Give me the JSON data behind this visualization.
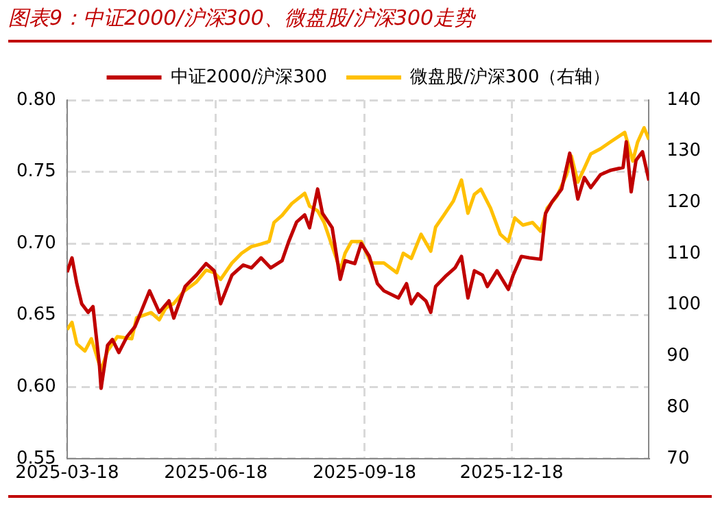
{
  "chart_data": {
    "type": "line",
    "title": "图表9：中证2000/沪深300、微盘股/沪深300走势",
    "xlim": [
      "2025-03-18",
      "2026-03-13"
    ],
    "xticks": [
      "2025-03-18",
      "2025-06-18",
      "2025-09-18",
      "2025-12-18"
    ],
    "ylim": [
      0.55,
      0.8
    ],
    "yticks": [
      {
        "value": 0.55,
        "label": "0.55"
      },
      {
        "value": 0.6,
        "label": "0.60"
      },
      {
        "value": 0.65,
        "label": "0.65"
      },
      {
        "value": 0.7,
        "label": "0.70"
      },
      {
        "value": 0.75,
        "label": "0.75"
      },
      {
        "value": 0.8,
        "label": "0.80"
      }
    ],
    "y2lim": [
      70,
      140
    ],
    "y2ticks": [
      70,
      80,
      90,
      100,
      110,
      120,
      130,
      140
    ],
    "grid": true,
    "legend": "top",
    "marker": "none",
    "line_style": "solid",
    "series": [
      {
        "name": "中证2000/沪深300",
        "color": "#c00000",
        "axis": "y",
        "x": [
          "2025-03-18",
          "2025-03-21",
          "2025-03-24",
          "2025-03-27",
          "2025-03-31",
          "2025-04-03",
          "2025-04-07",
          "2025-04-08",
          "2025-04-12",
          "2025-04-15",
          "2025-04-19",
          "2025-04-24",
          "2025-04-29",
          "2025-05-08",
          "2025-05-14",
          "2025-05-20",
          "2025-05-23",
          "2025-05-30",
          "2025-06-06",
          "2025-06-12",
          "2025-06-17",
          "2025-06-21",
          "2025-06-28",
          "2025-07-05",
          "2025-07-10",
          "2025-07-16",
          "2025-07-22",
          "2025-07-29",
          "2025-08-02",
          "2025-08-07",
          "2025-08-12",
          "2025-08-15",
          "2025-08-20",
          "2025-08-23",
          "2025-08-29",
          "2025-09-03",
          "2025-09-06",
          "2025-09-12",
          "2025-09-16",
          "2025-09-21",
          "2025-09-26",
          "2025-09-30",
          "2025-10-09",
          "2025-10-14",
          "2025-10-17",
          "2025-10-21",
          "2025-10-26",
          "2025-10-29",
          "2025-11-01",
          "2025-11-07",
          "2025-11-13",
          "2025-11-17",
          "2025-11-21",
          "2025-11-25",
          "2025-11-30",
          "2025-12-03",
          "2025-12-09",
          "2025-12-16",
          "2025-12-19",
          "2025-12-24",
          "2025-12-29",
          "2026-01-05",
          "2026-01-08",
          "2026-01-12",
          "2026-01-18",
          "2026-01-23",
          "2026-01-28",
          "2026-02-01",
          "2026-02-05",
          "2026-02-11",
          "2026-02-17",
          "2026-02-25",
          "2026-02-27",
          "2026-03-02",
          "2026-03-05",
          "2026-03-09",
          "2026-03-13"
        ],
        "values": [
          0.68,
          0.69,
          0.672,
          0.658,
          0.652,
          0.656,
          0.615,
          0.599,
          0.629,
          0.633,
          0.624,
          0.635,
          0.642,
          0.667,
          0.652,
          0.66,
          0.648,
          0.67,
          0.678,
          0.686,
          0.681,
          0.658,
          0.678,
          0.685,
          0.683,
          0.69,
          0.683,
          0.688,
          0.701,
          0.715,
          0.72,
          0.711,
          0.738,
          0.721,
          0.711,
          0.675,
          0.688,
          0.686,
          0.7,
          0.691,
          0.672,
          0.667,
          0.662,
          0.672,
          0.658,
          0.665,
          0.66,
          0.652,
          0.67,
          0.677,
          0.683,
          0.691,
          0.662,
          0.681,
          0.678,
          0.67,
          0.681,
          0.668,
          0.678,
          0.691,
          0.69,
          0.689,
          0.721,
          0.729,
          0.738,
          0.763,
          0.731,
          0.746,
          0.739,
          0.748,
          0.751,
          0.753,
          0.771,
          0.736,
          0.758,
          0.764,
          0.744
        ]
      },
      {
        "name": "微盘股/沪深300（右轴）",
        "color": "#ffc000",
        "axis": "y2",
        "x": [
          "2025-03-18",
          "2025-03-21",
          "2025-03-24",
          "2025-03-29",
          "2025-04-02",
          "2025-04-08",
          "2025-04-12",
          "2025-04-18",
          "2025-04-27",
          "2025-04-30",
          "2025-05-09",
          "2025-05-14",
          "2025-05-18",
          "2025-05-23",
          "2025-05-29",
          "2025-06-06",
          "2025-06-12",
          "2025-06-17",
          "2025-06-21",
          "2025-06-28",
          "2025-07-04",
          "2025-07-10",
          "2025-07-16",
          "2025-07-21",
          "2025-07-24",
          "2025-07-29",
          "2025-08-04",
          "2025-08-12",
          "2025-08-15",
          "2025-08-20",
          "2025-08-24",
          "2025-08-31",
          "2025-09-03",
          "2025-09-06",
          "2025-09-10",
          "2025-09-16",
          "2025-09-22",
          "2025-09-30",
          "2025-10-08",
          "2025-10-12",
          "2025-10-17",
          "2025-10-23",
          "2025-10-29",
          "2025-11-01",
          "2025-11-06",
          "2025-11-12",
          "2025-11-17",
          "2025-11-21",
          "2025-11-25",
          "2025-11-29",
          "2025-12-05",
          "2025-12-11",
          "2025-12-16",
          "2025-12-20",
          "2025-12-25",
          "2025-12-31",
          "2026-01-05",
          "2026-01-09",
          "2026-01-15",
          "2026-01-21",
          "2026-01-24",
          "2026-01-28",
          "2026-02-01",
          "2026-02-05",
          "2026-02-11",
          "2026-02-17",
          "2026-02-26",
          "2026-03-03",
          "2026-03-06",
          "2026-03-10",
          "2026-03-13"
        ],
        "values": [
          95.2,
          96.6,
          92.4,
          91.0,
          93.4,
          87.3,
          91.0,
          93.8,
          93.4,
          97.5,
          98.5,
          97.1,
          99.4,
          100.3,
          102.6,
          104.5,
          106.8,
          106.3,
          105.0,
          108.2,
          110.1,
          111.4,
          111.9,
          112.4,
          116.1,
          117.5,
          119.8,
          121.8,
          119.3,
          118.4,
          116.1,
          109.6,
          106.8,
          110.1,
          112.4,
          112.4,
          108.2,
          108.2,
          106.3,
          110.1,
          109.1,
          113.8,
          110.5,
          115.2,
          117.5,
          120.3,
          124.4,
          117.9,
          121.6,
          122.6,
          118.9,
          113.8,
          112.4,
          117.0,
          115.6,
          116.1,
          114.4,
          118.9,
          121.2,
          125.4,
          129.1,
          124.0,
          126.7,
          129.5,
          130.5,
          131.8,
          133.7,
          128.1,
          131.8,
          134.6,
          132.3
        ]
      }
    ]
  }
}
